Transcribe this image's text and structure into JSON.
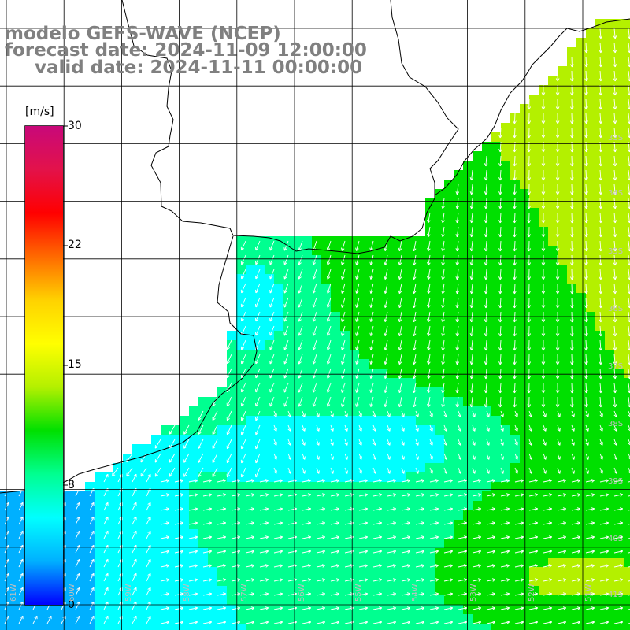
{
  "title": {
    "line1": "modelo GEFS-WAVE (NCEP)",
    "line2": "forecast date: 2024-11-09 12:00:00",
    "line3": "valid date: 2024-11-11 00:00:00"
  },
  "colorbar": {
    "unit": "[m/s]",
    "ticks": [
      "30",
      "22",
      "15",
      "8",
      "0"
    ],
    "colors": [
      "#c8087a",
      "#e3124a",
      "#ff0000",
      "#ff6a00",
      "#ffd200",
      "#ffff00",
      "#b4f000",
      "#00e000",
      "#00ff90",
      "#00ffff",
      "#00b0ff",
      "#0000ff"
    ]
  },
  "grid_labels": {
    "lat": [
      "33S",
      "34S",
      "35S",
      "36S",
      "37S",
      "38S",
      "39S",
      "40S",
      "41S"
    ],
    "lon": [
      "61W",
      "60W",
      "59W",
      "58W",
      "57W",
      "56W",
      "55W",
      "54W",
      "53W",
      "52W",
      "51W"
    ]
  },
  "colors": {
    "land": "#ffffff",
    "coast": "#000000",
    "grid": "#000000",
    "arrow": "#ffffff",
    "title": "#808080"
  }
}
